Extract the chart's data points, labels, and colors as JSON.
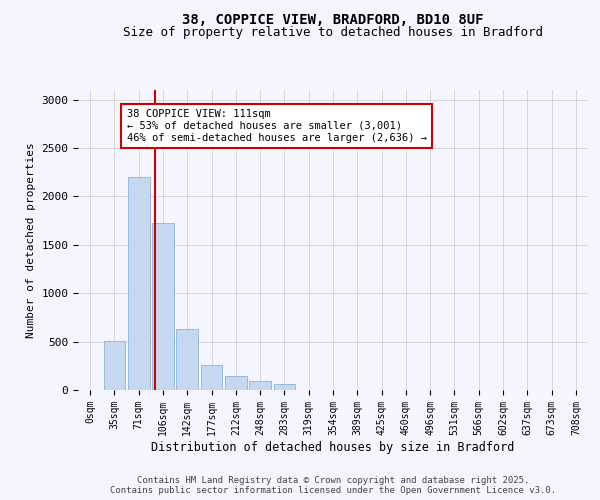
{
  "title_line1": "38, COPPICE VIEW, BRADFORD, BD10 8UF",
  "title_line2": "Size of property relative to detached houses in Bradford",
  "xlabel": "Distribution of detached houses by size in Bradford",
  "ylabel": "Number of detached properties",
  "bar_labels": [
    "0sqm",
    "35sqm",
    "71sqm",
    "106sqm",
    "142sqm",
    "177sqm",
    "212sqm",
    "248sqm",
    "283sqm",
    "319sqm",
    "354sqm",
    "389sqm",
    "425sqm",
    "460sqm",
    "496sqm",
    "531sqm",
    "566sqm",
    "602sqm",
    "637sqm",
    "673sqm",
    "708sqm"
  ],
  "bar_values": [
    0,
    510,
    2200,
    1730,
    630,
    260,
    140,
    90,
    60,
    0,
    0,
    0,
    0,
    0,
    0,
    0,
    0,
    0,
    0,
    0,
    0
  ],
  "bar_color": "#c5d8f0",
  "bar_edge_color": "#8ab4d8",
  "vline_color": "#cc0000",
  "annotation_text": "38 COPPICE VIEW: 111sqm\n← 53% of detached houses are smaller (3,001)\n46% of semi-detached houses are larger (2,636) →",
  "annotation_box_color": "#ffffff",
  "annotation_border_color": "#cc0000",
  "ylim": [
    0,
    3100
  ],
  "yticks": [
    0,
    500,
    1000,
    1500,
    2000,
    2500,
    3000
  ],
  "footer_line1": "Contains HM Land Registry data © Crown copyright and database right 2025.",
  "footer_line2": "Contains public sector information licensed under the Open Government Licence v3.0.",
  "bg_color": "#f5f5ff",
  "grid_color": "#cccccc",
  "title_fontsize": 10,
  "subtitle_fontsize": 9,
  "footer_fontsize": 6.5
}
